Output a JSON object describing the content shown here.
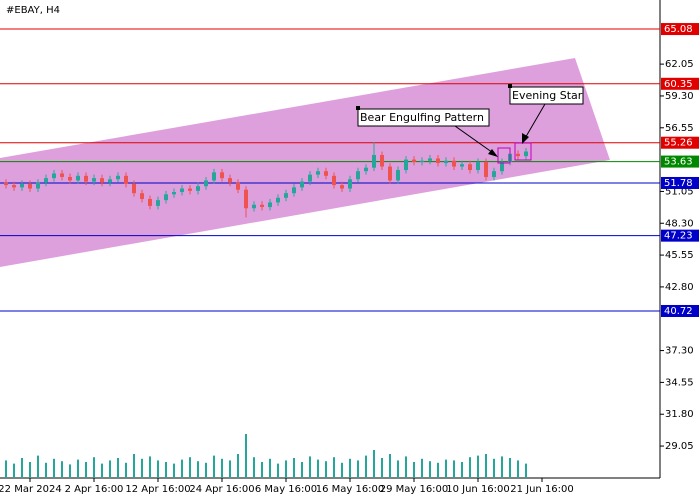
{
  "chart_data": {
    "type": "candlestick",
    "title": "#EBAY, H4",
    "categories": [
      null,
      null,
      null,
      "22 Mar 2024",
      null,
      null,
      null,
      null,
      null,
      null,
      null,
      "2 Apr 16:00",
      null,
      null,
      null,
      null,
      null,
      null,
      null,
      "12 Apr 16:00",
      null,
      null,
      null,
      null,
      null,
      null,
      null,
      "24 Apr 16:00",
      null,
      null,
      null,
      null,
      null,
      null,
      null,
      "6 May 16:00",
      null,
      null,
      null,
      null,
      null,
      null,
      null,
      "16 May 16:00",
      null,
      null,
      null,
      null,
      null,
      null,
      null,
      "29 May 16:00",
      null,
      null,
      null,
      null,
      null,
      null,
      null,
      "10 Jun 16:00",
      null,
      null,
      null,
      null,
      null,
      null,
      null,
      "21 Jun 16:00"
    ],
    "candles": [
      [
        51.8,
        52.1,
        51.3,
        51.6
      ],
      [
        51.6,
        51.9,
        51.1,
        51.4
      ],
      [
        51.4,
        52.0,
        51.1,
        51.7
      ],
      [
        51.7,
        52.0,
        51.0,
        51.3
      ],
      [
        51.3,
        52.1,
        51.0,
        51.8
      ],
      [
        51.8,
        52.5,
        51.5,
        52.2
      ],
      [
        52.2,
        52.9,
        51.9,
        52.6
      ],
      [
        52.6,
        52.9,
        52.0,
        52.3
      ],
      [
        52.3,
        52.6,
        51.7,
        52.0
      ],
      [
        52.0,
        52.7,
        51.7,
        52.4
      ],
      [
        52.4,
        52.7,
        51.6,
        51.9
      ],
      [
        51.9,
        52.5,
        51.6,
        52.2
      ],
      [
        52.2,
        52.5,
        51.5,
        51.8
      ],
      [
        51.8,
        52.4,
        51.5,
        52.1
      ],
      [
        52.1,
        52.7,
        51.8,
        52.4
      ],
      [
        52.4,
        52.7,
        51.4,
        51.7
      ],
      [
        51.7,
        52.0,
        50.6,
        50.9
      ],
      [
        50.9,
        51.2,
        50.1,
        50.4
      ],
      [
        50.4,
        50.7,
        49.5,
        49.8
      ],
      [
        49.8,
        50.6,
        49.5,
        50.3
      ],
      [
        50.3,
        51.1,
        50.0,
        50.8
      ],
      [
        50.8,
        51.3,
        50.5,
        51.0
      ],
      [
        51.0,
        51.6,
        50.7,
        51.3
      ],
      [
        51.3,
        51.6,
        50.8,
        51.1
      ],
      [
        51.1,
        51.8,
        50.8,
        51.5
      ],
      [
        51.5,
        52.3,
        51.2,
        52.0
      ],
      [
        52.0,
        53.0,
        51.7,
        52.7
      ],
      [
        52.7,
        53.0,
        51.9,
        52.2
      ],
      [
        52.2,
        52.5,
        51.5,
        51.8
      ],
      [
        51.8,
        52.1,
        50.9,
        51.2
      ],
      [
        51.2,
        51.5,
        48.8,
        49.6
      ],
      [
        49.6,
        50.2,
        49.3,
        49.9
      ],
      [
        49.9,
        50.2,
        49.4,
        49.7
      ],
      [
        49.7,
        50.4,
        49.4,
        50.1
      ],
      [
        50.1,
        50.8,
        49.8,
        50.5
      ],
      [
        50.5,
        51.2,
        50.2,
        50.9
      ],
      [
        50.9,
        51.7,
        50.6,
        51.4
      ],
      [
        51.4,
        52.2,
        51.1,
        51.9
      ],
      [
        51.9,
        52.8,
        51.6,
        52.5
      ],
      [
        52.5,
        53.1,
        52.2,
        52.8
      ],
      [
        52.8,
        53.1,
        52.1,
        52.4
      ],
      [
        52.4,
        52.7,
        51.3,
        51.6
      ],
      [
        51.6,
        51.9,
        51.0,
        51.3
      ],
      [
        51.3,
        52.4,
        51.0,
        52.1
      ],
      [
        52.1,
        53.1,
        51.8,
        52.8
      ],
      [
        52.8,
        53.4,
        52.5,
        53.1
      ],
      [
        53.1,
        55.3,
        52.8,
        54.2
      ],
      [
        54.2,
        54.5,
        52.9,
        53.2
      ],
      [
        53.2,
        53.5,
        51.7,
        52.0
      ],
      [
        52.0,
        53.2,
        51.7,
        52.9
      ],
      [
        52.9,
        54.1,
        52.6,
        53.8
      ],
      [
        53.8,
        54.1,
        53.3,
        53.6
      ],
      [
        53.6,
        54.0,
        53.3,
        53.7
      ],
      [
        53.7,
        54.2,
        53.4,
        53.9
      ],
      [
        53.9,
        54.2,
        53.2,
        53.5
      ],
      [
        53.5,
        54.0,
        53.2,
        53.7
      ],
      [
        53.7,
        54.0,
        52.9,
        53.2
      ],
      [
        53.2,
        53.7,
        52.9,
        53.4
      ],
      [
        53.4,
        53.7,
        52.6,
        52.9
      ],
      [
        52.9,
        53.9,
        52.6,
        53.6
      ],
      [
        53.6,
        53.9,
        52.0,
        52.3
      ],
      [
        52.3,
        53.1,
        52.0,
        52.8
      ],
      [
        52.8,
        53.9,
        52.5,
        53.6
      ],
      [
        53.6,
        54.6,
        53.3,
        54.3
      ],
      [
        54.3,
        54.6,
        53.8,
        54.1
      ],
      [
        54.1,
        54.8,
        53.8,
        54.5
      ],
      null,
      null
    ],
    "volumes": [
      22,
      18,
      25,
      20,
      28,
      19,
      24,
      21,
      17,
      23,
      20,
      26,
      18,
      22,
      25,
      19,
      30,
      24,
      27,
      22,
      20,
      18,
      23,
      26,
      21,
      19,
      28,
      24,
      22,
      30,
      55,
      26,
      20,
      24,
      18,
      22,
      25,
      20,
      27,
      23,
      21,
      26,
      19,
      24,
      22,
      28,
      35,
      25,
      30,
      22,
      27,
      20,
      24,
      21,
      19,
      23,
      22,
      20,
      26,
      28,
      30,
      24,
      27,
      25,
      22,
      18,
      null,
      null
    ],
    "vlim": [
      0,
      100
    ],
    "ylim": [
      26.29,
      67.59
    ],
    "yticks": [
      62.05,
      {
        "value": 59.3,
        "label": "59.30"
      },
      56.55,
      51.05,
      {
        "value": 48.3,
        "label": "48.30"
      },
      45.55,
      {
        "value": 42.8,
        "label": "42.80"
      },
      {
        "value": 37.3,
        "label": "37.30"
      },
      34.55,
      {
        "value": 31.8,
        "label": "31.80"
      },
      29.05
    ],
    "levels": [
      {
        "value": 65.08,
        "color": "#e00000"
      },
      {
        "value": 60.35,
        "color": "#e00000"
      },
      {
        "value": 55.26,
        "color": "#e00000"
      },
      {
        "value": 53.63,
        "color": "#008800"
      },
      {
        "value": 51.78,
        "color": "#0000c8"
      },
      {
        "value": 47.23,
        "color": "#0000c8"
      },
      {
        "value": 40.72,
        "color": "#0000c8"
      }
    ],
    "up_color": "#26a69a",
    "down_color": "#ef5350",
    "annotations": [
      "Bear Engulfing Pattern",
      "Evening Star"
    ]
  }
}
